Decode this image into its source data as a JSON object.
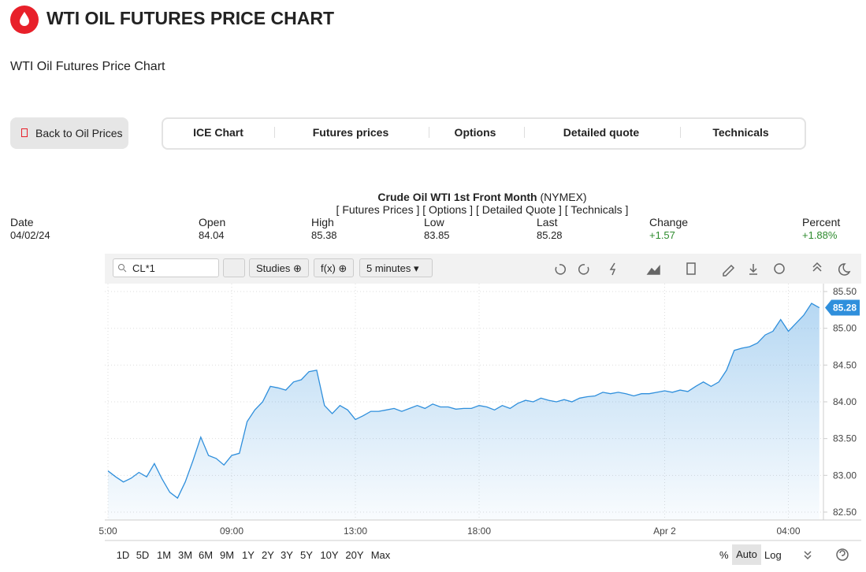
{
  "header": {
    "title": "WTI OIL FUTURES PRICE CHART",
    "subtitle": "WTI Oil Futures Price Chart"
  },
  "back_button": "Back to Oil Prices",
  "tabs": [
    "ICE Chart",
    "Futures prices",
    "Options",
    "Detailed quote",
    "Technicals"
  ],
  "quote": {
    "name": "Crude Oil WTI 1st Front Month",
    "exchange": "(NYMEX)",
    "links": "[ Futures Prices ] [ Options ] [ Detailed Quote ] [ Technicals ]",
    "columns": [
      {
        "label": "Date",
        "value": "04/02/24"
      },
      {
        "label": "Open",
        "value": "84.04"
      },
      {
        "label": "High",
        "value": "85.38"
      },
      {
        "label": "Low",
        "value": "83.85"
      },
      {
        "label": "Last",
        "value": "85.28"
      },
      {
        "label": "Change",
        "value": "+1.57"
      },
      {
        "label": "Percent",
        "value": "+1.88%"
      }
    ]
  },
  "toolbar": {
    "symbol": "CL*1",
    "studies": "Studies",
    "fx": "f(x)",
    "interval": "5 minutes"
  },
  "chart_data": {
    "type": "line",
    "categories": [
      "5:00",
      null,
      null,
      null,
      null,
      null,
      null,
      null,
      null,
      null,
      null,
      null,
      null,
      null,
      null,
      null,
      "09:00",
      null,
      null,
      null,
      null,
      null,
      null,
      null,
      null,
      null,
      null,
      null,
      null,
      null,
      null,
      null,
      "13:00",
      null,
      null,
      null,
      null,
      null,
      null,
      null,
      null,
      null,
      null,
      null,
      null,
      null,
      null,
      null,
      "18:00",
      null,
      null,
      null,
      null,
      null,
      null,
      null,
      null,
      null,
      null,
      null,
      null,
      null,
      null,
      null,
      null,
      null,
      null,
      null,
      null,
      null,
      null,
      null,
      "Apr 2",
      null,
      null,
      null,
      null,
      null,
      null,
      null,
      null,
      null,
      null,
      null,
      null,
      null,
      null,
      null,
      "04:00",
      null,
      null,
      null,
      null
    ],
    "series": [
      {
        "name": "CL*1",
        "color": "#2f8fdc",
        "values": [
          83.06,
          82.98,
          82.91,
          82.96,
          83.04,
          82.98,
          83.16,
          82.95,
          82.77,
          82.69,
          82.91,
          83.2,
          83.52,
          83.27,
          83.23,
          83.14,
          83.27,
          83.3,
          83.73,
          83.89,
          84.0,
          84.21,
          84.19,
          84.16,
          84.27,
          84.3,
          84.41,
          84.43,
          83.95,
          83.84,
          83.95,
          83.89,
          83.76,
          83.81,
          83.87,
          83.87,
          83.89,
          83.91,
          83.87,
          83.91,
          83.95,
          83.91,
          83.97,
          83.93,
          83.93,
          83.9,
          83.91,
          83.91,
          83.95,
          83.93,
          83.89,
          83.95,
          83.91,
          83.98,
          84.02,
          84.0,
          84.05,
          84.02,
          84.0,
          84.03,
          84.0,
          84.05,
          84.07,
          84.08,
          84.13,
          84.11,
          84.13,
          84.11,
          84.08,
          84.11,
          84.11,
          84.13,
          84.15,
          84.13,
          84.16,
          84.14,
          84.21,
          84.27,
          84.21,
          84.27,
          84.43,
          84.7,
          84.73,
          84.75,
          84.8,
          84.91,
          84.96,
          85.12,
          84.96,
          85.07,
          85.18,
          85.34,
          85.28
        ]
      }
    ],
    "ylim": [
      82.4,
      85.6
    ],
    "yticks": [
      {
        "value": 82.5,
        "label": "82.50"
      },
      {
        "value": 83,
        "label": "83.00"
      },
      {
        "value": 83.5,
        "label": "83.50"
      },
      {
        "value": 84,
        "label": "84.00"
      },
      {
        "value": 84.5,
        "label": "84.50"
      },
      {
        "value": 85,
        "label": "85.00"
      },
      {
        "value": 85.5,
        "label": "85.50"
      }
    ],
    "grid": true
  },
  "ranges": [
    "1D",
    "5D",
    "1M",
    "3M",
    "6M",
    "9M",
    "1Y",
    "2Y",
    "3Y",
    "5Y",
    "10Y",
    "20Y",
    "Max"
  ],
  "scale_options": [
    "%",
    "Auto",
    "Log"
  ]
}
